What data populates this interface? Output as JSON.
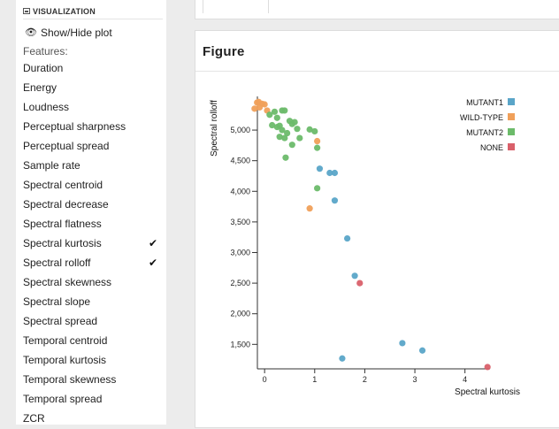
{
  "sidebar": {
    "section_title": "VISUALIZATION",
    "toggle_label": "Show/Hide plot",
    "features_label": "Features:",
    "features": [
      {
        "label": "Duration",
        "checked": false
      },
      {
        "label": "Energy",
        "checked": false
      },
      {
        "label": "Loudness",
        "checked": false
      },
      {
        "label": "Perceptual sharpness",
        "checked": false
      },
      {
        "label": "Perceptual spread",
        "checked": false
      },
      {
        "label": "Sample rate",
        "checked": false
      },
      {
        "label": "Spectral centroid",
        "checked": false
      },
      {
        "label": "Spectral decrease",
        "checked": false
      },
      {
        "label": "Spectral flatness",
        "checked": false
      },
      {
        "label": "Spectral kurtosis",
        "checked": true
      },
      {
        "label": "Spectral rolloff",
        "checked": true
      },
      {
        "label": "Spectral skewness",
        "checked": false
      },
      {
        "label": "Spectral slope",
        "checked": false
      },
      {
        "label": "Spectral spread",
        "checked": false
      },
      {
        "label": "Temporal centroid",
        "checked": false
      },
      {
        "label": "Temporal kurtosis",
        "checked": false
      },
      {
        "label": "Temporal skewness",
        "checked": false
      },
      {
        "label": "Temporal spread",
        "checked": false
      },
      {
        "label": "ZCR",
        "checked": false
      }
    ]
  },
  "figure": {
    "title": "Figure"
  },
  "chart_data": {
    "type": "scatter",
    "xlabel": "Spectral kurtosis",
    "ylabel": "Spectral rolloff",
    "xlim": [
      -0.25,
      4.5
    ],
    "ylim": [
      1100,
      5550
    ],
    "x_ticks": [
      0,
      1,
      2,
      3,
      4
    ],
    "y_ticks": [
      1500,
      2000,
      2500,
      3000,
      3500,
      4000,
      4500,
      5000
    ],
    "y_tick_labels": [
      "1,500",
      "2,000",
      "2,500",
      "3,000",
      "3,500",
      "4,000",
      "4,500",
      "5,000"
    ],
    "legend_position": "top-right",
    "series": [
      {
        "name": "MUTANT1",
        "color": "#5aa5c8",
        "points": [
          [
            1.1,
            4370
          ],
          [
            1.3,
            4300
          ],
          [
            1.4,
            4300
          ],
          [
            1.4,
            3850
          ],
          [
            1.65,
            3230
          ],
          [
            1.8,
            2620
          ],
          [
            2.75,
            1520
          ],
          [
            3.15,
            1400
          ],
          [
            1.55,
            1270
          ]
        ]
      },
      {
        "name": "WILD-TYPE",
        "color": "#f0a05a",
        "points": [
          [
            -0.15,
            5450
          ],
          [
            -0.05,
            5430
          ],
          [
            -0.2,
            5350
          ],
          [
            -0.1,
            5370
          ],
          [
            0.0,
            5420
          ],
          [
            -0.12,
            5460
          ],
          [
            0.05,
            5320
          ],
          [
            1.05,
            4820
          ],
          [
            0.9,
            3720
          ]
        ]
      },
      {
        "name": "MUTANT2",
        "color": "#6cbb6a",
        "points": [
          [
            0.1,
            5250
          ],
          [
            0.2,
            5300
          ],
          [
            0.25,
            5200
          ],
          [
            0.35,
            5320
          ],
          [
            0.4,
            5320
          ],
          [
            0.15,
            5080
          ],
          [
            0.25,
            5050
          ],
          [
            0.3,
            5070
          ],
          [
            0.35,
            5000
          ],
          [
            0.45,
            4950
          ],
          [
            0.5,
            5150
          ],
          [
            0.55,
            5100
          ],
          [
            0.65,
            5020
          ],
          [
            0.7,
            4870
          ],
          [
            0.55,
            4760
          ],
          [
            0.9,
            5010
          ],
          [
            1.0,
            4980
          ],
          [
            1.05,
            4710
          ],
          [
            0.4,
            4870
          ],
          [
            0.3,
            4890
          ],
          [
            0.42,
            4550
          ],
          [
            1.05,
            4050
          ],
          [
            0.6,
            5130
          ]
        ]
      },
      {
        "name": "NONE",
        "color": "#d9606a",
        "points": [
          [
            1.9,
            2500
          ],
          [
            4.45,
            1130
          ]
        ]
      }
    ]
  }
}
